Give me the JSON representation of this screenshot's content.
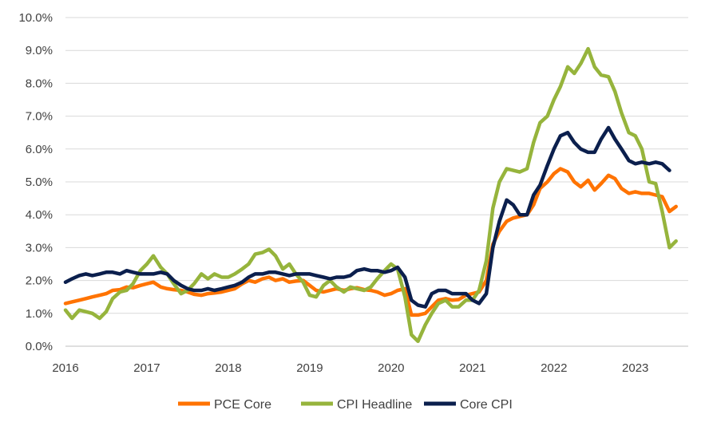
{
  "colors": {
    "pce": "#ff7300",
    "cpi_headline": "#96b43c",
    "core_cpi": "#0b1f4d",
    "grid": "#d9d9d9",
    "axis": "#bfbfbf"
  },
  "chart_data": {
    "type": "line",
    "x_label_ticks": [
      "2016",
      "2017",
      "2018",
      "2019",
      "2020",
      "2021",
      "2022",
      "2023"
    ],
    "y_tick_labels": [
      "0.0%",
      "1.0%",
      "2.0%",
      "3.0%",
      "4.0%",
      "5.0%",
      "6.0%",
      "7.0%",
      "8.0%",
      "9.0%",
      "10.0%"
    ],
    "ylim": [
      0,
      10
    ],
    "xlim": [
      2016.0,
      2023.65
    ],
    "grid": "horizontal",
    "legend_position": "bottom",
    "series": [
      {
        "name": "PCE Core",
        "color_key": "pce",
        "points": [
          [
            2016.0,
            1.3
          ],
          [
            2016.08,
            1.35
          ],
          [
            2016.17,
            1.4
          ],
          [
            2016.25,
            1.45
          ],
          [
            2016.33,
            1.5
          ],
          [
            2016.42,
            1.55
          ],
          [
            2016.5,
            1.6
          ],
          [
            2016.58,
            1.7
          ],
          [
            2016.67,
            1.72
          ],
          [
            2016.75,
            1.8
          ],
          [
            2016.83,
            1.78
          ],
          [
            2016.92,
            1.85
          ],
          [
            2017.0,
            1.9
          ],
          [
            2017.08,
            1.95
          ],
          [
            2017.17,
            1.8
          ],
          [
            2017.25,
            1.75
          ],
          [
            2017.33,
            1.72
          ],
          [
            2017.42,
            1.7
          ],
          [
            2017.5,
            1.65
          ],
          [
            2017.58,
            1.58
          ],
          [
            2017.67,
            1.55
          ],
          [
            2017.75,
            1.6
          ],
          [
            2017.83,
            1.62
          ],
          [
            2017.92,
            1.65
          ],
          [
            2018.0,
            1.7
          ],
          [
            2018.08,
            1.75
          ],
          [
            2018.17,
            1.9
          ],
          [
            2018.25,
            2.0
          ],
          [
            2018.33,
            1.95
          ],
          [
            2018.42,
            2.05
          ],
          [
            2018.5,
            2.1
          ],
          [
            2018.58,
            2.0
          ],
          [
            2018.67,
            2.05
          ],
          [
            2018.75,
            1.95
          ],
          [
            2018.83,
            1.98
          ],
          [
            2018.92,
            2.0
          ],
          [
            2019.0,
            1.85
          ],
          [
            2019.08,
            1.7
          ],
          [
            2019.17,
            1.65
          ],
          [
            2019.25,
            1.7
          ],
          [
            2019.33,
            1.75
          ],
          [
            2019.42,
            1.7
          ],
          [
            2019.5,
            1.75
          ],
          [
            2019.58,
            1.78
          ],
          [
            2019.67,
            1.72
          ],
          [
            2019.75,
            1.7
          ],
          [
            2019.83,
            1.65
          ],
          [
            2019.92,
            1.55
          ],
          [
            2020.0,
            1.6
          ],
          [
            2020.08,
            1.7
          ],
          [
            2020.17,
            1.75
          ],
          [
            2020.25,
            0.95
          ],
          [
            2020.33,
            0.95
          ],
          [
            2020.42,
            1.0
          ],
          [
            2020.5,
            1.2
          ],
          [
            2020.58,
            1.4
          ],
          [
            2020.67,
            1.45
          ],
          [
            2020.75,
            1.4
          ],
          [
            2020.83,
            1.42
          ],
          [
            2020.92,
            1.55
          ],
          [
            2021.0,
            1.6
          ],
          [
            2021.08,
            1.65
          ],
          [
            2021.17,
            2.0
          ],
          [
            2021.25,
            3.1
          ],
          [
            2021.33,
            3.5
          ],
          [
            2021.42,
            3.8
          ],
          [
            2021.5,
            3.9
          ],
          [
            2021.58,
            3.95
          ],
          [
            2021.67,
            4.0
          ],
          [
            2021.75,
            4.3
          ],
          [
            2021.83,
            4.8
          ],
          [
            2021.92,
            5.0
          ],
          [
            2022.0,
            5.25
          ],
          [
            2022.08,
            5.4
          ],
          [
            2022.17,
            5.3
          ],
          [
            2022.25,
            5.0
          ],
          [
            2022.33,
            4.85
          ],
          [
            2022.42,
            5.05
          ],
          [
            2022.5,
            4.75
          ],
          [
            2022.58,
            4.95
          ],
          [
            2022.67,
            5.2
          ],
          [
            2022.75,
            5.1
          ],
          [
            2022.83,
            4.8
          ],
          [
            2022.92,
            4.65
          ],
          [
            2023.0,
            4.7
          ],
          [
            2023.08,
            4.65
          ],
          [
            2023.17,
            4.65
          ],
          [
            2023.25,
            4.6
          ],
          [
            2023.33,
            4.55
          ],
          [
            2023.42,
            4.1
          ],
          [
            2023.5,
            4.25
          ]
        ]
      },
      {
        "name": "CPI Headline",
        "color_key": "cpi_headline",
        "points": [
          [
            2016.0,
            1.1
          ],
          [
            2016.08,
            0.85
          ],
          [
            2016.17,
            1.1
          ],
          [
            2016.25,
            1.05
          ],
          [
            2016.33,
            1.0
          ],
          [
            2016.42,
            0.85
          ],
          [
            2016.5,
            1.05
          ],
          [
            2016.58,
            1.45
          ],
          [
            2016.67,
            1.65
          ],
          [
            2016.75,
            1.7
          ],
          [
            2016.83,
            1.9
          ],
          [
            2016.92,
            2.3
          ],
          [
            2017.0,
            2.5
          ],
          [
            2017.08,
            2.75
          ],
          [
            2017.17,
            2.4
          ],
          [
            2017.25,
            2.2
          ],
          [
            2017.33,
            1.9
          ],
          [
            2017.42,
            1.6
          ],
          [
            2017.5,
            1.7
          ],
          [
            2017.58,
            1.9
          ],
          [
            2017.67,
            2.2
          ],
          [
            2017.75,
            2.05
          ],
          [
            2017.83,
            2.2
          ],
          [
            2017.92,
            2.1
          ],
          [
            2018.0,
            2.1
          ],
          [
            2018.08,
            2.2
          ],
          [
            2018.17,
            2.35
          ],
          [
            2018.25,
            2.5
          ],
          [
            2018.33,
            2.8
          ],
          [
            2018.42,
            2.85
          ],
          [
            2018.5,
            2.95
          ],
          [
            2018.58,
            2.75
          ],
          [
            2018.67,
            2.35
          ],
          [
            2018.75,
            2.5
          ],
          [
            2018.83,
            2.2
          ],
          [
            2018.92,
            1.95
          ],
          [
            2019.0,
            1.55
          ],
          [
            2019.08,
            1.5
          ],
          [
            2019.17,
            1.85
          ],
          [
            2019.25,
            2.0
          ],
          [
            2019.33,
            1.8
          ],
          [
            2019.42,
            1.65
          ],
          [
            2019.5,
            1.8
          ],
          [
            2019.58,
            1.75
          ],
          [
            2019.67,
            1.7
          ],
          [
            2019.75,
            1.8
          ],
          [
            2019.83,
            2.05
          ],
          [
            2019.92,
            2.3
          ],
          [
            2020.0,
            2.5
          ],
          [
            2020.08,
            2.35
          ],
          [
            2020.17,
            1.5
          ],
          [
            2020.25,
            0.35
          ],
          [
            2020.33,
            0.15
          ],
          [
            2020.42,
            0.65
          ],
          [
            2020.5,
            1.0
          ],
          [
            2020.58,
            1.3
          ],
          [
            2020.67,
            1.4
          ],
          [
            2020.75,
            1.2
          ],
          [
            2020.83,
            1.2
          ],
          [
            2020.92,
            1.4
          ],
          [
            2021.0,
            1.4
          ],
          [
            2021.08,
            1.7
          ],
          [
            2021.17,
            2.6
          ],
          [
            2021.25,
            4.2
          ],
          [
            2021.33,
            5.0
          ],
          [
            2021.42,
            5.4
          ],
          [
            2021.5,
            5.35
          ],
          [
            2021.58,
            5.3
          ],
          [
            2021.67,
            5.4
          ],
          [
            2021.75,
            6.2
          ],
          [
            2021.83,
            6.8
          ],
          [
            2021.92,
            7.0
          ],
          [
            2022.0,
            7.5
          ],
          [
            2022.08,
            7.9
          ],
          [
            2022.17,
            8.5
          ],
          [
            2022.25,
            8.3
          ],
          [
            2022.33,
            8.6
          ],
          [
            2022.42,
            9.05
          ],
          [
            2022.5,
            8.5
          ],
          [
            2022.58,
            8.25
          ],
          [
            2022.67,
            8.2
          ],
          [
            2022.75,
            7.75
          ],
          [
            2022.83,
            7.1
          ],
          [
            2022.92,
            6.5
          ],
          [
            2023.0,
            6.4
          ],
          [
            2023.08,
            6.0
          ],
          [
            2023.17,
            5.0
          ],
          [
            2023.25,
            4.95
          ],
          [
            2023.33,
            4.1
          ],
          [
            2023.42,
            3.0
          ],
          [
            2023.5,
            3.2
          ]
        ]
      },
      {
        "name": "Core CPI",
        "color_key": "core_cpi",
        "points": [
          [
            2016.0,
            1.95
          ],
          [
            2016.08,
            2.05
          ],
          [
            2016.17,
            2.15
          ],
          [
            2016.25,
            2.2
          ],
          [
            2016.33,
            2.15
          ],
          [
            2016.42,
            2.2
          ],
          [
            2016.5,
            2.25
          ],
          [
            2016.58,
            2.25
          ],
          [
            2016.67,
            2.2
          ],
          [
            2016.75,
            2.3
          ],
          [
            2016.83,
            2.25
          ],
          [
            2016.92,
            2.2
          ],
          [
            2017.0,
            2.2
          ],
          [
            2017.08,
            2.2
          ],
          [
            2017.17,
            2.25
          ],
          [
            2017.25,
            2.2
          ],
          [
            2017.33,
            2.0
          ],
          [
            2017.42,
            1.85
          ],
          [
            2017.5,
            1.75
          ],
          [
            2017.58,
            1.7
          ],
          [
            2017.67,
            1.7
          ],
          [
            2017.75,
            1.75
          ],
          [
            2017.83,
            1.7
          ],
          [
            2017.92,
            1.75
          ],
          [
            2018.0,
            1.8
          ],
          [
            2018.08,
            1.85
          ],
          [
            2018.17,
            1.95
          ],
          [
            2018.25,
            2.1
          ],
          [
            2018.33,
            2.2
          ],
          [
            2018.42,
            2.2
          ],
          [
            2018.5,
            2.25
          ],
          [
            2018.58,
            2.25
          ],
          [
            2018.67,
            2.2
          ],
          [
            2018.75,
            2.15
          ],
          [
            2018.83,
            2.2
          ],
          [
            2018.92,
            2.2
          ],
          [
            2019.0,
            2.2
          ],
          [
            2019.08,
            2.15
          ],
          [
            2019.17,
            2.1
          ],
          [
            2019.25,
            2.05
          ],
          [
            2019.33,
            2.1
          ],
          [
            2019.42,
            2.1
          ],
          [
            2019.5,
            2.15
          ],
          [
            2019.58,
            2.3
          ],
          [
            2019.67,
            2.35
          ],
          [
            2019.75,
            2.3
          ],
          [
            2019.83,
            2.3
          ],
          [
            2019.92,
            2.25
          ],
          [
            2020.0,
            2.3
          ],
          [
            2020.08,
            2.4
          ],
          [
            2020.17,
            2.1
          ],
          [
            2020.25,
            1.4
          ],
          [
            2020.33,
            1.25
          ],
          [
            2020.42,
            1.2
          ],
          [
            2020.5,
            1.6
          ],
          [
            2020.58,
            1.7
          ],
          [
            2020.67,
            1.7
          ],
          [
            2020.75,
            1.6
          ],
          [
            2020.83,
            1.6
          ],
          [
            2020.92,
            1.6
          ],
          [
            2021.0,
            1.4
          ],
          [
            2021.08,
            1.3
          ],
          [
            2021.17,
            1.6
          ],
          [
            2021.25,
            3.0
          ],
          [
            2021.33,
            3.8
          ],
          [
            2021.42,
            4.45
          ],
          [
            2021.5,
            4.3
          ],
          [
            2021.58,
            4.0
          ],
          [
            2021.67,
            4.0
          ],
          [
            2021.75,
            4.6
          ],
          [
            2021.83,
            4.9
          ],
          [
            2021.92,
            5.5
          ],
          [
            2022.0,
            6.0
          ],
          [
            2022.08,
            6.4
          ],
          [
            2022.17,
            6.5
          ],
          [
            2022.25,
            6.2
          ],
          [
            2022.33,
            6.0
          ],
          [
            2022.42,
            5.9
          ],
          [
            2022.5,
            5.9
          ],
          [
            2022.58,
            6.3
          ],
          [
            2022.67,
            6.65
          ],
          [
            2022.75,
            6.3
          ],
          [
            2022.83,
            6.0
          ],
          [
            2022.92,
            5.65
          ],
          [
            2023.0,
            5.55
          ],
          [
            2023.08,
            5.6
          ],
          [
            2023.17,
            5.55
          ],
          [
            2023.25,
            5.6
          ],
          [
            2023.33,
            5.55
          ],
          [
            2023.42,
            5.35
          ]
        ]
      }
    ]
  }
}
